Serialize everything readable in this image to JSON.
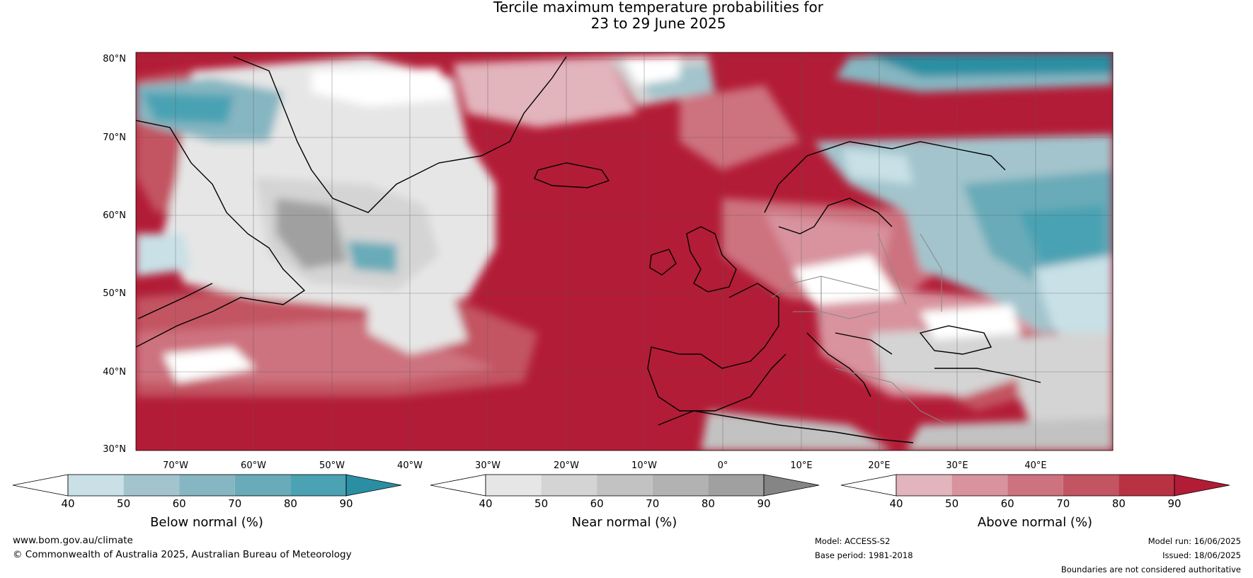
{
  "title": {
    "line1": "Tercile maximum temperature probabilities for",
    "line2": "23 to 29 June 2025"
  },
  "map": {
    "lat_labels": [
      "80°N",
      "70°N",
      "60°N",
      "50°N",
      "40°N",
      "30°N"
    ],
    "lon_labels": [
      "70°W",
      "60°W",
      "50°W",
      "40°W",
      "30°W",
      "20°W",
      "10°W",
      "0°",
      "10°E",
      "20°E",
      "30°E",
      "40°E"
    ],
    "colors": {
      "below": [
        "#c8e0e6",
        "#a3c4cc",
        "#86b6c1",
        "#69abb8",
        "#4aa2b3",
        "#2a8fa3"
      ],
      "near": [
        "#e6e6e6",
        "#d4d4d4",
        "#c2c2c2",
        "#b2b2b2",
        "#a0a0a0",
        "#858585"
      ],
      "above": [
        "#e2b4bc",
        "#d8939e",
        "#cd727f",
        "#c35462",
        "#b83244",
        "#b31c36"
      ],
      "land_outline": "#000000",
      "borders": "#888888",
      "gridlines": "#555555"
    }
  },
  "colorbars": [
    {
      "label": "Below normal (%)",
      "ticks": [
        "40",
        "50",
        "60",
        "70",
        "80",
        "90"
      ]
    },
    {
      "label": "Near normal (%)",
      "ticks": [
        "40",
        "50",
        "60",
        "70",
        "80",
        "90"
      ]
    },
    {
      "label": "Above normal (%)",
      "ticks": [
        "40",
        "50",
        "60",
        "70",
        "80",
        "90"
      ]
    }
  ],
  "footer": {
    "website": "www.bom.gov.au/climate",
    "copyright": "© Commonwealth of Australia 2025, Australian Bureau of Meteorology",
    "model": "Model: ACCESS-S2",
    "base_period": "Base period: 1981-2018",
    "model_run": "Model run: 16/06/2025",
    "issued": "Issued: 18/06/2025",
    "disclaimer": "Boundaries are not considered authoritative"
  }
}
